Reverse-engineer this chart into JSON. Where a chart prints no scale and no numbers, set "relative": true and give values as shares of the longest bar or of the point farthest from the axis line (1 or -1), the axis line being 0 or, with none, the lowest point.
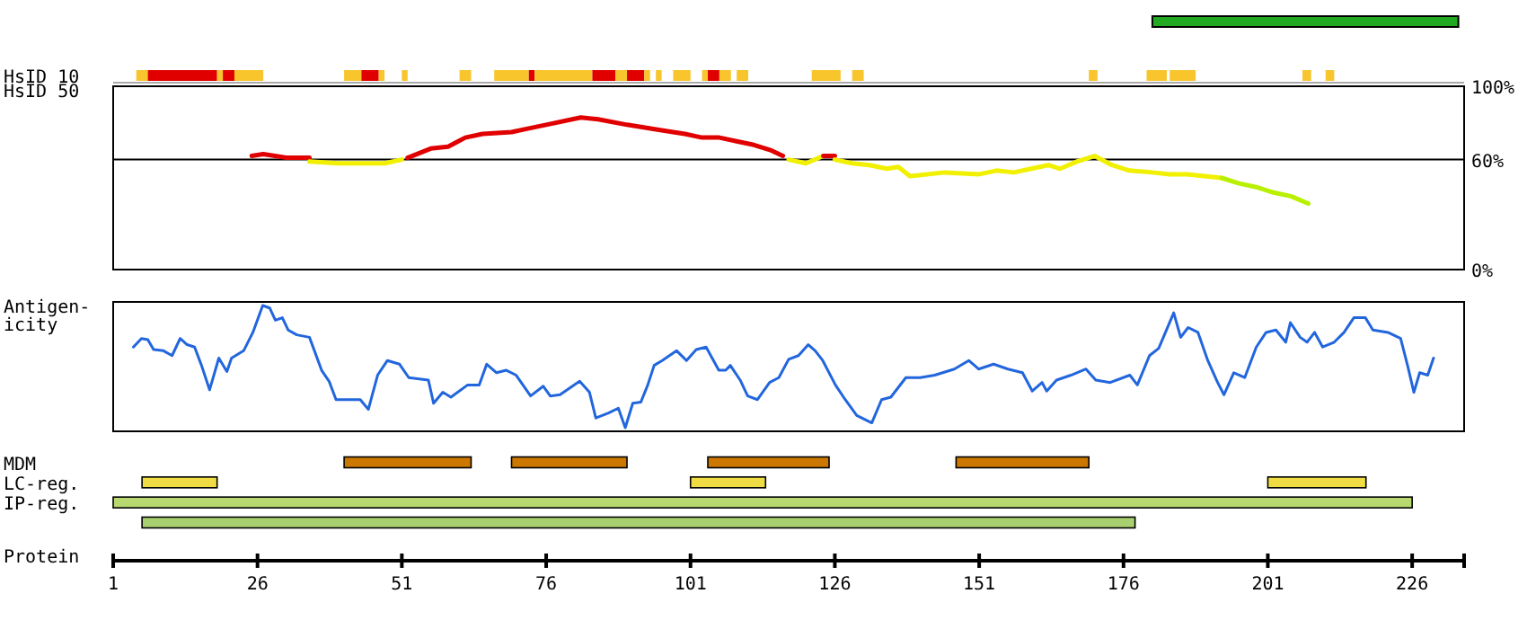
{
  "chart_data": [
    {
      "type": "bar",
      "orientation": "horizontal",
      "categories": [
        null
      ],
      "xlim": [
        1,
        235
      ],
      "tick_labels": false,
      "series": [
        {
          "values": [
            53
          ],
          "base": [
            181
          ],
          "color": "#22aa22"
        }
      ]
    },
    {
      "type": "bar",
      "orientation": "horizontal",
      "categories": [
        "HsID 10"
      ],
      "xlim": [
        1,
        235
      ],
      "tick_labels": "y",
      "series": [
        {
          "values": [
            2
          ],
          "base": [
            5
          ],
          "color": "#f8c52c"
        },
        {
          "values": [
            12
          ],
          "base": [
            7
          ],
          "color": "#e00000"
        },
        {
          "values": [
            1
          ],
          "base": [
            19
          ],
          "color": "#f8c52c"
        },
        {
          "values": [
            2
          ],
          "base": [
            20
          ],
          "color": "#e00000"
        },
        {
          "values": [
            5
          ],
          "base": [
            22
          ],
          "color": "#f8c52c"
        },
        {
          "values": [
            3
          ],
          "base": [
            41
          ],
          "color": "#f8c52c"
        },
        {
          "values": [
            3
          ],
          "base": [
            44
          ],
          "color": "#e00000"
        },
        {
          "values": [
            1
          ],
          "base": [
            47
          ],
          "color": "#f8c52c"
        },
        {
          "values": [
            1
          ],
          "base": [
            51
          ],
          "color": "#f8c52c"
        },
        {
          "values": [
            2
          ],
          "base": [
            61
          ],
          "color": "#f8c52c"
        },
        {
          "values": [
            6
          ],
          "base": [
            67
          ],
          "color": "#f8c52c"
        },
        {
          "values": [
            1
          ],
          "base": [
            73
          ],
          "color": "#e00000"
        },
        {
          "values": [
            10
          ],
          "base": [
            74
          ],
          "color": "#f8c52c"
        },
        {
          "values": [
            4
          ],
          "base": [
            84
          ],
          "color": "#e00000"
        },
        {
          "values": [
            2
          ],
          "base": [
            88
          ],
          "color": "#f8c52c"
        },
        {
          "values": [
            3
          ],
          "base": [
            90
          ],
          "color": "#e00000"
        },
        {
          "values": [
            1
          ],
          "base": [
            93
          ],
          "color": "#f8c52c"
        },
        {
          "values": [
            1
          ],
          "base": [
            95
          ],
          "color": "#f8c52c"
        },
        {
          "values": [
            3
          ],
          "base": [
            98
          ],
          "color": "#f8c52c"
        },
        {
          "values": [
            1
          ],
          "base": [
            103
          ],
          "color": "#f8c52c"
        },
        {
          "values": [
            2
          ],
          "base": [
            104
          ],
          "color": "#e00000"
        },
        {
          "values": [
            2
          ],
          "base": [
            106
          ],
          "color": "#f8c52c"
        },
        {
          "values": [
            2
          ],
          "base": [
            109
          ],
          "color": "#f8c52c"
        },
        {
          "values": [
            5
          ],
          "base": [
            122
          ],
          "color": "#f8c52c"
        },
        {
          "values": [
            2
          ],
          "base": [
            129
          ],
          "color": "#f8c52c"
        },
        {
          "values": [
            1.5
          ],
          "base": [
            170
          ],
          "color": "#f8c52c"
        },
        {
          "values": [
            3.5
          ],
          "base": [
            180
          ],
          "color": "#f8c52c"
        },
        {
          "values": [
            4.5
          ],
          "base": [
            184
          ],
          "color": "#f8c52c"
        },
        {
          "values": [
            1.5
          ],
          "base": [
            207
          ],
          "color": "#f8c52c"
        },
        {
          "values": [
            1.5
          ],
          "base": [
            211
          ],
          "color": "#f8c52c"
        }
      ]
    },
    {
      "type": "line",
      "ylabel": "HsID 50",
      "xlim": [
        1,
        235
      ],
      "ylim": [
        0,
        100
      ],
      "yticks": [
        {
          "value": 0,
          "label": "0%"
        },
        {
          "value": 60,
          "label": "60%"
        },
        {
          "value": 100,
          "label": "100%"
        }
      ],
      "tick_labels": "y",
      "ref_lines": [
        {
          "axis": "y",
          "value": 60,
          "color": "#000000"
        }
      ],
      "series": [
        {
          "color": "#e00000",
          "x": [
            25,
            27,
            31,
            35
          ],
          "values": [
            62,
            63,
            61,
            61
          ]
        },
        {
          "color": "#f0f000",
          "x": [
            35,
            40,
            48,
            51
          ],
          "values": [
            59,
            58,
            58,
            60
          ]
        },
        {
          "color": "#e00000",
          "x": [
            52,
            56,
            59,
            62,
            65,
            70,
            73,
            76,
            82,
            85,
            90,
            96,
            100,
            103,
            106,
            109,
            112,
            115,
            117
          ],
          "values": [
            61,
            66,
            67,
            72,
            74,
            75,
            77,
            79,
            83,
            82,
            79,
            76,
            74,
            72,
            72,
            70,
            68,
            65,
            62
          ]
        },
        {
          "color": "#f0f000",
          "x": [
            118,
            121,
            124
          ],
          "values": [
            60,
            58,
            62
          ]
        },
        {
          "color": "#e00000",
          "x": [
            124,
            126
          ],
          "values": [
            62,
            62
          ]
        },
        {
          "color": "#f0f000",
          "x": [
            126,
            129,
            132,
            135,
            137,
            139,
            145,
            151,
            154,
            157,
            160,
            163,
            165,
            168,
            171,
            174,
            177,
            181,
            184,
            187,
            193
          ],
          "values": [
            60,
            58,
            57,
            55,
            56,
            51,
            53,
            52,
            54,
            53,
            55,
            57,
            55,
            59,
            62,
            57,
            54,
            53,
            52,
            52,
            50
          ]
        },
        {
          "color": "#b8f000",
          "x": [
            193,
            196,
            199,
            202,
            205,
            208
          ],
          "values": [
            50,
            47,
            45,
            42,
            40,
            36
          ]
        }
      ]
    },
    {
      "type": "line",
      "ylabel": "Antigen-icity",
      "relative": true,
      "xlim": [
        1,
        235
      ],
      "tick_labels": false,
      "series": [
        {
          "color": "#2266dd",
          "x": [
            4.5,
            5.9,
            7.0,
            8.0,
            9.7,
            11.2,
            12.6,
            13.8,
            15.1,
            16.3,
            17.7,
            19.3,
            20.7,
            21.5,
            23.6,
            25.2,
            26.9,
            28.1,
            29.1,
            30.3,
            31.3,
            32.8,
            35.0,
            37.1,
            38.4,
            39.6,
            43.8,
            45.2,
            46.8,
            48.5,
            50.6,
            52.2,
            55.6,
            56.5,
            58.1,
            59.5,
            62.4,
            64.4,
            65.7,
            67.4,
            69.1,
            70.8,
            73.3,
            75.5,
            76.7,
            78.4,
            81.8,
            83.5,
            84.6,
            86.8,
            88.5,
            89.7,
            91.0,
            92.4,
            93.6,
            94.7,
            96.1,
            98.6,
            100.3,
            102.0,
            103.7,
            105.9,
            107.1,
            107.9,
            109.6,
            110.9,
            112.6,
            114.7,
            116.3,
            118.0,
            119.7,
            121.4,
            122.6,
            123.9,
            126.1,
            127.8,
            129.8,
            132.4,
            134.1,
            135.7,
            138.3,
            140.8,
            143.3,
            146.7,
            149.2,
            150.9,
            153.5,
            156.0,
            158.5,
            160.2,
            161.9,
            162.7,
            164.4,
            166.9,
            169.5,
            171.2,
            173.7,
            177.1,
            178.4,
            180.5,
            182.1,
            184.7,
            185.9,
            187.2,
            188.9,
            190.6,
            192.3,
            193.4,
            195.1,
            197.0,
            199.0,
            200.7,
            202.4,
            204.1,
            204.9,
            206.6,
            207.8,
            209.1,
            210.5,
            212.5,
            214.2,
            215.9,
            217.9,
            219.2,
            221.8,
            224.0,
            225.2,
            226.3,
            227.3,
            228.7,
            229.7
          ],
          "values": [
            0.66,
            0.73,
            0.72,
            0.64,
            0.63,
            0.59,
            0.73,
            0.68,
            0.66,
            0.51,
            0.31,
            0.57,
            0.46,
            0.57,
            0.63,
            0.78,
            1,
            0.98,
            0.88,
            0.9,
            0.8,
            0.76,
            0.74,
            0.47,
            0.38,
            0.23,
            0.23,
            0.15,
            0.43,
            0.55,
            0.52,
            0.41,
            0.39,
            0.2,
            0.29,
            0.25,
            0.35,
            0.35,
            0.52,
            0.45,
            0.47,
            0.43,
            0.26,
            0.34,
            0.26,
            0.27,
            0.38,
            0.29,
            0.08,
            0.12,
            0.16,
            0,
            0.2,
            0.21,
            0.35,
            0.51,
            0.55,
            0.63,
            0.55,
            0.64,
            0.66,
            0.47,
            0.47,
            0.51,
            0.39,
            0.26,
            0.23,
            0.37,
            0.41,
            0.56,
            0.59,
            0.68,
            0.63,
            0.55,
            0.35,
            0.23,
            0.1,
            0.04,
            0.23,
            0.25,
            0.41,
            0.41,
            0.43,
            0.48,
            0.55,
            0.48,
            0.52,
            0.48,
            0.45,
            0.3,
            0.37,
            0.3,
            0.39,
            0.43,
            0.48,
            0.39,
            0.37,
            0.43,
            0.35,
            0.59,
            0.65,
            0.94,
            0.74,
            0.82,
            0.78,
            0.55,
            0.37,
            0.27,
            0.45,
            0.41,
            0.66,
            0.78,
            0.8,
            0.7,
            0.86,
            0.74,
            0.7,
            0.78,
            0.66,
            0.7,
            0.78,
            0.9,
            0.9,
            0.8,
            0.78,
            0.73,
            0.51,
            0.29,
            0.45,
            0.43,
            0.57
          ]
        }
      ]
    },
    {
      "type": "bar",
      "orientation": "horizontal",
      "categories": [
        "MDM",
        "LC-reg.",
        "IP-reg.",
        null
      ],
      "xlabel": "Protein",
      "xlim": [
        1,
        235
      ],
      "xticks": [
        1,
        26,
        51,
        76,
        101,
        126,
        151,
        176,
        201,
        226
      ],
      "series": [
        {
          "values": [
            22,
            13,
            225,
            172
          ],
          "base": [
            41,
            6,
            1,
            6
          ],
          "colors": [
            "#cc7700",
            "#f0dd44",
            "#b8d870",
            "#a8d070"
          ]
        },
        {
          "values": [
            20,
            13,
            null,
            null
          ],
          "base": [
            70,
            101,
            null,
            null
          ],
          "colors": [
            "#cc7700",
            "#f0dd44",
            null,
            null
          ]
        },
        {
          "values": [
            21,
            17,
            null,
            null
          ],
          "base": [
            104,
            201,
            null,
            null
          ],
          "colors": [
            "#cc7700",
            "#f0dd44",
            null,
            null
          ]
        },
        {
          "values": [
            23,
            null,
            null,
            null
          ],
          "base": [
            147,
            null,
            null,
            null
          ],
          "colors": [
            "#cc7700",
            null,
            null,
            null
          ]
        }
      ]
    }
  ]
}
